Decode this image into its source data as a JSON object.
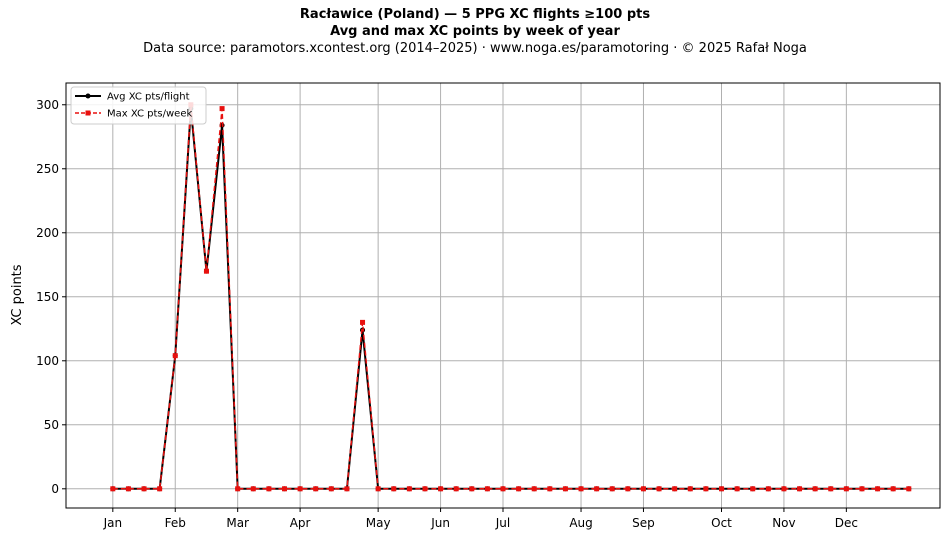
{
  "chart_data": {
    "type": "line",
    "title": "Racławice (Poland)  —  5 PPG XC flights ≥100 pts",
    "subtitle": "Avg and max XC points by week of year",
    "source": "Data source: paramotors.xcontest.org (2014–2025)  ·  www.noga.es/paramotoring  ·  © 2025 Rafał Noga",
    "xlabel": "",
    "ylabel": "XC points",
    "xlim": [
      -2,
      54
    ],
    "ylim": [
      -15,
      317
    ],
    "yticks": [
      0,
      50,
      100,
      150,
      200,
      250,
      300
    ],
    "grid": true,
    "legend_position": "top-left",
    "xticks": [
      {
        "label": "Jan",
        "x": 1
      },
      {
        "label": "Feb",
        "x": 5
      },
      {
        "label": "Mar",
        "x": 9
      },
      {
        "label": "Apr",
        "x": 13
      },
      {
        "label": "May",
        "x": 18
      },
      {
        "label": "Jun",
        "x": 22
      },
      {
        "label": "Jul",
        "x": 26
      },
      {
        "label": "Aug",
        "x": 31
      },
      {
        "label": "Sep",
        "x": 35
      },
      {
        "label": "Oct",
        "x": 40
      },
      {
        "label": "Nov",
        "x": 44
      },
      {
        "label": "Dec",
        "x": 48
      }
    ],
    "x": [
      1,
      2,
      3,
      4,
      5,
      6,
      7,
      8,
      9,
      10,
      11,
      12,
      13,
      14,
      15,
      16,
      17,
      18,
      19,
      20,
      21,
      22,
      23,
      24,
      25,
      26,
      27,
      28,
      29,
      30,
      31,
      32,
      33,
      34,
      35,
      36,
      37,
      38,
      39,
      40,
      41,
      42,
      43,
      44,
      45,
      46,
      47,
      48,
      49,
      50,
      51,
      52
    ],
    "series": [
      {
        "name": "Avg XC pts/flight",
        "color": "#000000",
        "values": [
          0,
          0,
          0,
          0,
          104,
          297,
          170,
          284,
          0,
          0,
          0,
          0,
          0,
          0,
          0,
          0,
          124,
          0,
          0,
          0,
          0,
          0,
          0,
          0,
          0,
          0,
          0,
          0,
          0,
          0,
          0,
          0,
          0,
          0,
          0,
          0,
          0,
          0,
          0,
          0,
          0,
          0,
          0,
          0,
          0,
          0,
          0,
          0,
          0,
          0,
          0,
          0
        ]
      },
      {
        "name": "Max XC pts/week",
        "color": "#e8100e",
        "values": [
          0,
          0,
          0,
          0,
          104,
          300,
          170,
          297,
          0,
          0,
          0,
          0,
          0,
          0,
          0,
          0,
          130,
          0,
          0,
          0,
          0,
          0,
          0,
          0,
          0,
          0,
          0,
          0,
          0,
          0,
          0,
          0,
          0,
          0,
          0,
          0,
          0,
          0,
          0,
          0,
          0,
          0,
          0,
          0,
          0,
          0,
          0,
          0,
          0,
          0,
          0,
          0
        ]
      }
    ]
  }
}
